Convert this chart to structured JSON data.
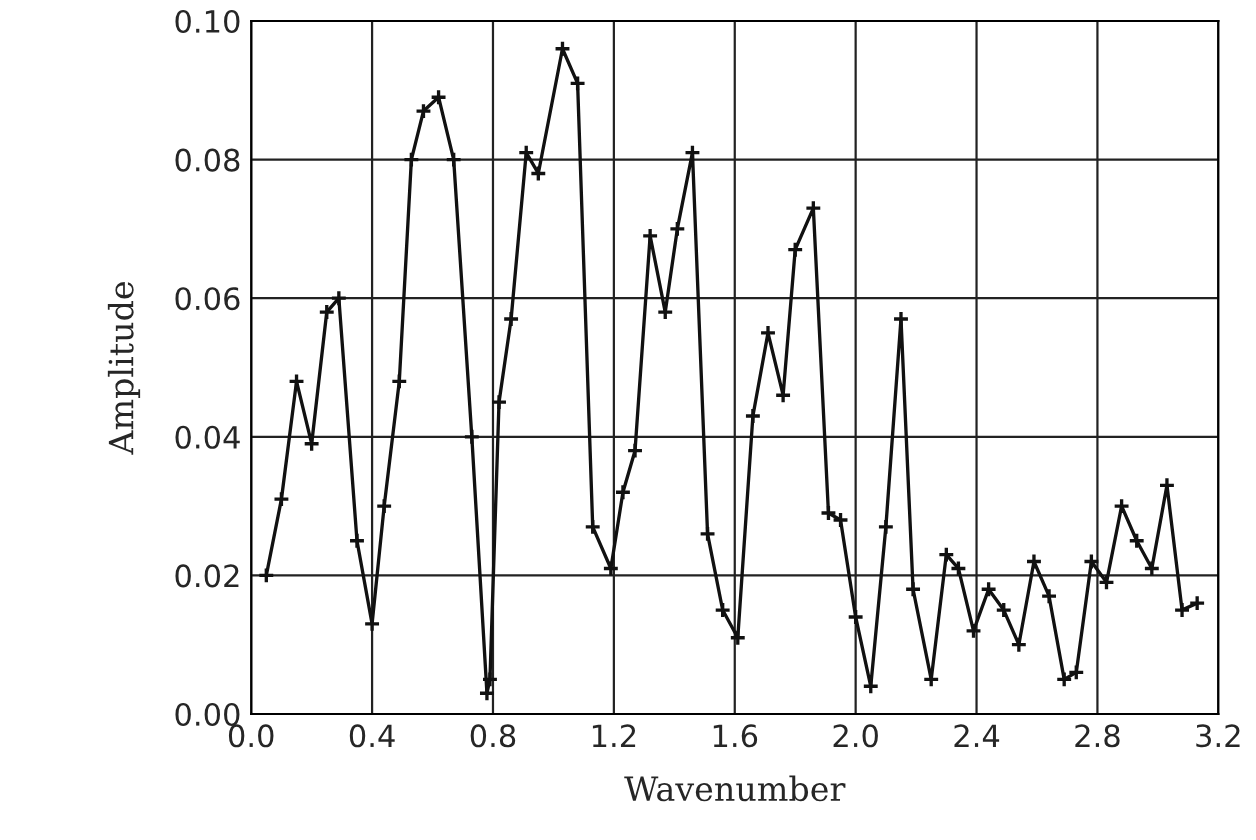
{
  "chart_data": {
    "type": "line",
    "xlabel": "Wavenumber",
    "ylabel": "Amplitude",
    "x": [
      0.05,
      0.1,
      0.15,
      0.2,
      0.25,
      0.29,
      0.35,
      0.4,
      0.44,
      0.49,
      0.53,
      0.57,
      0.62,
      0.67,
      0.73,
      0.78,
      0.79,
      0.82,
      0.86,
      0.91,
      0.95,
      1.03,
      1.08,
      1.13,
      1.19,
      1.23,
      1.27,
      1.32,
      1.37,
      1.41,
      1.46,
      1.51,
      1.56,
      1.61,
      1.66,
      1.71,
      1.76,
      1.8,
      1.86,
      1.91,
      1.95,
      2.0,
      2.05,
      2.1,
      2.15,
      2.19,
      2.25,
      2.3,
      2.34,
      2.39,
      2.44,
      2.49,
      2.54,
      2.59,
      2.64,
      2.69,
      2.73,
      2.78,
      2.83,
      2.88,
      2.93,
      2.98,
      3.03,
      3.08,
      3.13
    ],
    "series": [
      {
        "color": "#111111",
        "values": [
          0.02,
          0.031,
          0.048,
          0.039,
          0.058,
          0.06,
          0.025,
          0.013,
          0.03,
          0.048,
          0.08,
          0.087,
          0.089,
          0.08,
          0.04,
          0.003,
          0.005,
          0.045,
          0.057,
          0.081,
          0.078,
          0.096,
          0.091,
          0.027,
          0.021,
          0.032,
          0.038,
          0.069,
          0.058,
          0.07,
          0.081,
          0.026,
          0.015,
          0.011,
          0.043,
          0.055,
          0.046,
          0.067,
          0.073,
          0.029,
          0.028,
          0.014,
          0.004,
          0.027,
          0.057,
          0.018,
          0.005,
          0.023,
          0.021,
          0.012,
          0.018,
          0.015,
          0.01,
          0.022,
          0.017,
          0.005,
          0.006,
          0.022,
          0.019,
          0.03,
          0.025,
          0.021,
          0.033,
          0.015,
          0.016
        ]
      }
    ],
    "xlim": [
      0.0,
      3.2
    ],
    "xticks": [
      {
        "value": 0,
        "label": "0.0"
      },
      0.4,
      0.8,
      1.2,
      1.6,
      {
        "value": 2,
        "label": "2.0"
      },
      2.4,
      2.8,
      3.2
    ],
    "ylim": [
      0.0,
      0.1
    ],
    "yticks": [
      {
        "value": 0,
        "label": "0.00"
      },
      {
        "value": 0.02,
        "label": "0.02"
      },
      {
        "value": 0.04,
        "label": "0.04"
      },
      {
        "value": 0.06,
        "label": "0.06"
      },
      {
        "value": 0.08,
        "label": "0.08"
      },
      {
        "value": 0.1,
        "label": "0.10"
      }
    ],
    "grid": true,
    "marker": "cross",
    "line_style": "solid"
  }
}
